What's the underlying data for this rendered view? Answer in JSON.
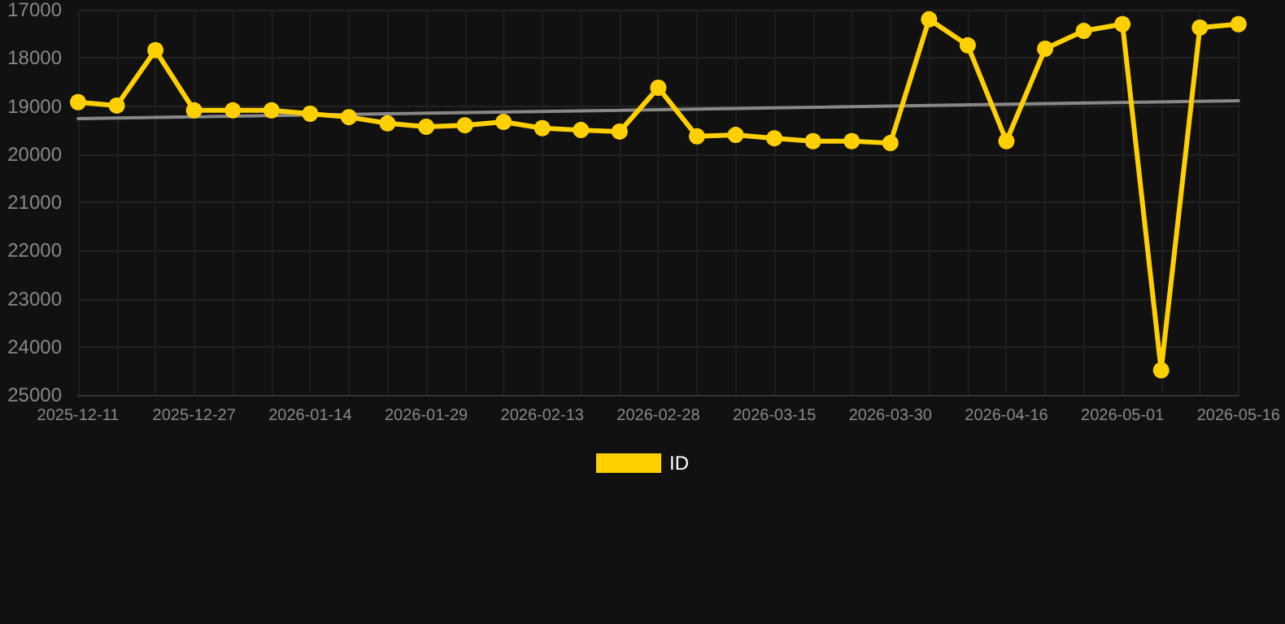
{
  "chart_data": {
    "type": "line",
    "categories": [
      "2025-12-11",
      null,
      null,
      "2025-12-27",
      null,
      null,
      "2026-01-14",
      null,
      null,
      "2026-01-29",
      null,
      null,
      "2026-02-13",
      null,
      null,
      "2026-02-28",
      null,
      null,
      "2026-03-15",
      null,
      null,
      "2026-03-30",
      null,
      null,
      "2026-04-16",
      null,
      null,
      "2026-05-01",
      null,
      null,
      "2026-05-16"
    ],
    "series": [
      {
        "name": "ID",
        "color": "#ffd000",
        "values": [
          18920,
          18990,
          17840,
          19090,
          19090,
          19090,
          19160,
          19230,
          19360,
          19430,
          19400,
          19330,
          19460,
          19500,
          19530,
          18620,
          19630,
          19600,
          19670,
          19730,
          19730,
          19770,
          17200,
          17740,
          19730,
          17810,
          17440,
          17300,
          24490,
          17370,
          17300
        ]
      },
      {
        "type": "line",
        "color": "#888888",
        "marker": "none",
        "values": [
          19260,
          null,
          null,
          null,
          null,
          null,
          null,
          null,
          null,
          null,
          null,
          null,
          null,
          null,
          null,
          null,
          null,
          null,
          null,
          null,
          null,
          null,
          null,
          null,
          null,
          null,
          null,
          null,
          null,
          null,
          18890
        ]
      }
    ],
    "ylim": [
      25000,
      17000
    ],
    "yticks": [
      17000,
      18000,
      19000,
      20000,
      21000,
      22000,
      23000,
      24000,
      25000
    ],
    "grid": true,
    "legend": "bottom",
    "marker": "circle",
    "line_style": "solid"
  }
}
